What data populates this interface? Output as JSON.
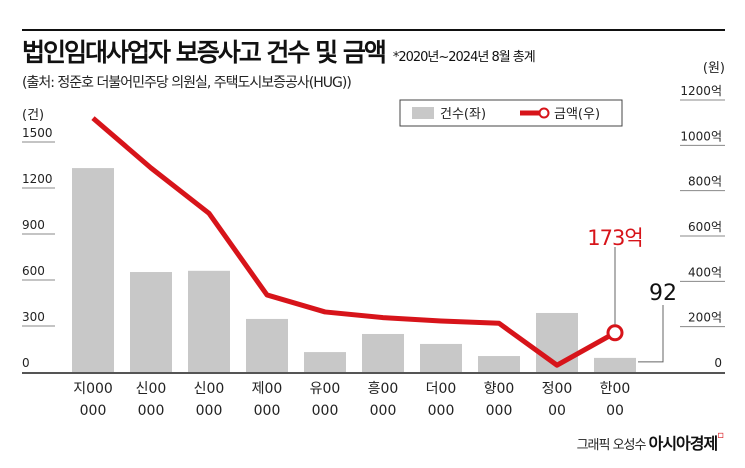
{
  "title": "법인임대사업자 보증사고 건수 및 금액",
  "note": "*2020년~2024년 8월 총계",
  "source": "(출처: 정준호 더불어민주당 의원실, 주택도시보증공사(HUG))",
  "credit": "그래픽 오성수",
  "brand": "아시아경제",
  "chart_data": {
    "type": "bar+line",
    "categories": [
      [
        "지000",
        "000"
      ],
      [
        "신00",
        "000"
      ],
      [
        "신00",
        "000"
      ],
      [
        "제00",
        "000"
      ],
      [
        "유00",
        "000"
      ],
      [
        "흥00",
        "000"
      ],
      [
        "더00",
        "000"
      ],
      [
        "향00",
        "000"
      ],
      [
        "정00",
        "00"
      ],
      [
        "한00",
        "00"
      ]
    ],
    "series": [
      {
        "name": "건수(좌)",
        "type": "bar",
        "axis": "left",
        "color": "#c8c8c8",
        "values": [
          1330,
          652,
          660,
          346,
          130,
          248,
          183,
          104,
          385,
          92
        ]
      },
      {
        "name": "금액(우)",
        "type": "line",
        "axis": "right",
        "color": "#d7141a",
        "values": [
          1120,
          900,
          700,
          340,
          265,
          240,
          225,
          215,
          30,
          173
        ]
      }
    ],
    "left_axis": {
      "unit": "(건)",
      "ticks": [
        "0",
        "300",
        "600",
        "900",
        "1200",
        "1500"
      ],
      "ylim": [
        0,
        1500
      ]
    },
    "right_axis": {
      "unit": "(원)",
      "ticks": [
        "0",
        "200억",
        "400억",
        "600억",
        "800억",
        "1000억",
        "1200억"
      ],
      "ylim": [
        0,
        1200
      ]
    },
    "annotations": {
      "line_last": "173억",
      "bar_last": "92"
    },
    "legend_position": "top-right"
  }
}
